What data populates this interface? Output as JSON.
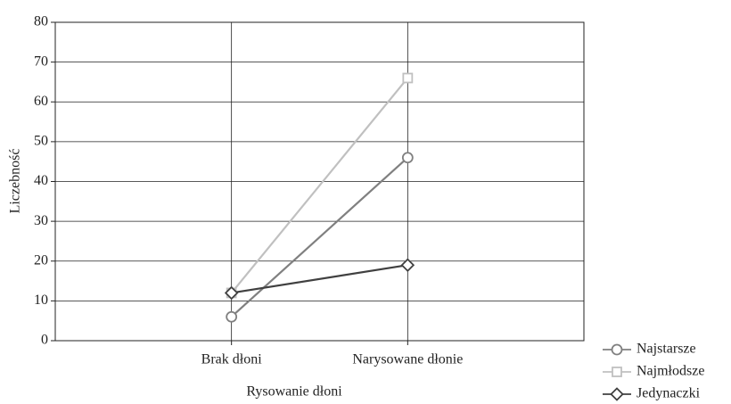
{
  "chart_data": {
    "type": "line",
    "xlabel": "Rysowanie dłoni",
    "ylabel": "Liczebność",
    "categories": [
      "Brak dłoni",
      "Narysowane dłonie"
    ],
    "series": [
      {
        "name": "Najstarsze",
        "color": "#808080",
        "marker": "circle",
        "values": [
          6,
          46
        ]
      },
      {
        "name": "Najmłodsze",
        "color": "#c0c0c0",
        "marker": "square",
        "values": [
          12,
          66
        ]
      },
      {
        "name": "Jedynaczki",
        "color": "#404040",
        "marker": "diamond",
        "values": [
          12,
          19
        ]
      }
    ],
    "ylim": [
      0,
      80
    ],
    "yticks": [
      0,
      10,
      20,
      30,
      40,
      50,
      60,
      70,
      80
    ],
    "grid": true,
    "legend": "lower right"
  }
}
